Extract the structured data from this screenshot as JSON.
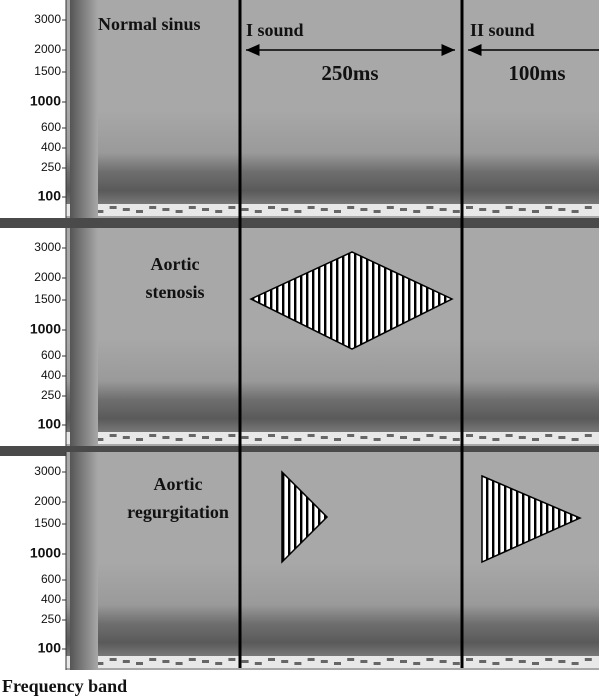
{
  "panels": [
    {
      "label_lines": [
        "Normal sinus"
      ]
    },
    {
      "label_lines": [
        "Aortic",
        "stenosis"
      ]
    },
    {
      "label_lines": [
        "Aortic",
        "regurgitation"
      ]
    }
  ],
  "frequency_axis": {
    "ticks": [
      3000,
      2000,
      1500,
      1000,
      600,
      400,
      250,
      100
    ]
  },
  "sounds": [
    {
      "name": "I sound",
      "duration": "250ms"
    },
    {
      "name": "II sound",
      "duration": "100ms"
    }
  ],
  "footer": "Frequency band"
}
